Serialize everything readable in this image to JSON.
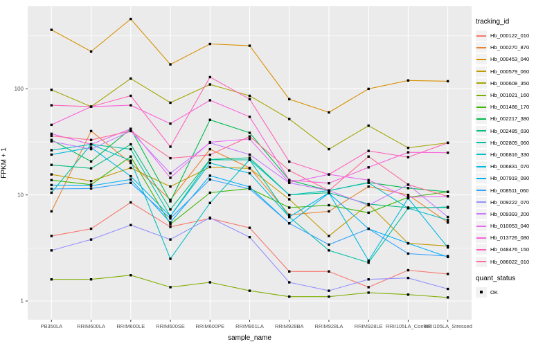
{
  "chart_data": {
    "type": "line",
    "title": "",
    "xlabel": "sample_name",
    "ylabel": "FPKM + 1",
    "y_scale": "log10",
    "y_ticks": [
      1,
      10,
      100
    ],
    "y_minor_ticks": [
      3.16,
      31.6,
      316
    ],
    "ylim": [
      0.66,
      590
    ],
    "grid": "on",
    "legend_position": "right",
    "marker": {
      "shape": "square",
      "color": "#000000",
      "meaning": "quant_status OK"
    },
    "categories": [
      "PB350LA",
      "RRIM600LA",
      "RRIM600LE",
      "RRIM600SE",
      "RRIM600PE",
      "RRIM901LA",
      "RRIM928BA",
      "RRIM928LA",
      "RRIM928LE",
      "RRII105LA_Control",
      "RRII105LA_Stressed"
    ],
    "series": [
      {
        "name": "Hb_000122_010",
        "color": "#F8766D",
        "values": [
          4.1,
          4.8,
          8.5,
          5.0,
          6.0,
          4.9,
          1.9,
          1.9,
          1.35,
          1.95,
          1.8
        ]
      },
      {
        "name": "Hb_000270_870",
        "color": "#EA8331",
        "values": [
          7.0,
          40,
          20,
          9.0,
          27,
          18,
          6.5,
          7.0,
          12,
          10,
          5.5
        ]
      },
      {
        "name": "Hb_000453_040",
        "color": "#D89000",
        "values": [
          360,
          225,
          455,
          170,
          265,
          255,
          80,
          60,
          100,
          120,
          118
        ]
      },
      {
        "name": "Hb_000579_060",
        "color": "#C09B00",
        "values": [
          15.6,
          13.5,
          18,
          12,
          18.3,
          17.8,
          9.1,
          4.1,
          8.2,
          3.5,
          3.3
        ]
      },
      {
        "name": "Hb_000608_350",
        "color": "#A3A500",
        "values": [
          98,
          68,
          125,
          74,
          110,
          86,
          52,
          27,
          45,
          27.8,
          31
        ]
      },
      {
        "name": "Hb_001021_160",
        "color": "#7CAE00",
        "values": [
          1.6,
          1.6,
          1.75,
          1.35,
          1.5,
          1.25,
          1.1,
          1.1,
          1.2,
          1.15,
          1.08
        ]
      },
      {
        "name": "Hb_001486_170",
        "color": "#39B600",
        "values": [
          13.8,
          12.5,
          23,
          5.3,
          10.5,
          11.5,
          7.6,
          8.0,
          6.8,
          9.5,
          10.7
        ]
      },
      {
        "name": "Hb_002217_380",
        "color": "#00BB4E",
        "values": [
          33,
          20.7,
          42,
          8.7,
          51,
          38.5,
          13.8,
          11,
          13.1,
          11.6,
          10.7
        ]
      },
      {
        "name": "Hb_002485_030",
        "color": "#00BF7D",
        "values": [
          19.2,
          17.8,
          30,
          7.3,
          21.6,
          22.4,
          10,
          10.5,
          8.2,
          7.6,
          7.6
        ]
      },
      {
        "name": "Hb_002805_060",
        "color": "#00C1A3",
        "values": [
          10.5,
          30,
          27,
          6.3,
          21.4,
          21.4,
          6.2,
          3.0,
          2.3,
          7.5,
          7.7
        ]
      },
      {
        "name": "Hb_006816_330",
        "color": "#00BFC4",
        "values": [
          26.4,
          30,
          21,
          2.5,
          8.4,
          21.5,
          10,
          11,
          13,
          7.5,
          5.8
        ]
      },
      {
        "name": "Hb_006831_070",
        "color": "#00BAE0",
        "values": [
          24,
          28,
          15,
          6.3,
          20,
          16,
          6.2,
          10.5,
          2.4,
          9.3,
          3.2
        ]
      },
      {
        "name": "Hb_007919_080",
        "color": "#00B0F6",
        "values": [
          12.4,
          12.2,
          14,
          5.5,
          15.2,
          11.9,
          5.4,
          10.4,
          4.8,
          3.5,
          2.6
        ]
      },
      {
        "name": "Hb_008511_060",
        "color": "#35A2FF",
        "values": [
          11.4,
          11.5,
          13,
          6.0,
          14,
          11.4,
          5.4,
          3.4,
          4.8,
          2.8,
          2.65
        ]
      },
      {
        "name": "Hb_009222_070",
        "color": "#9590FF",
        "values": [
          3.0,
          3.8,
          5.2,
          3.8,
          6.1,
          4.0,
          1.5,
          1.25,
          1.6,
          1.65,
          1.3
        ]
      },
      {
        "name": "Hb_009393_200",
        "color": "#C77CFF",
        "values": [
          32,
          27,
          40,
          16,
          31,
          24,
          13,
          11,
          8,
          12.5,
          6.2
        ]
      },
      {
        "name": "Hb_010053_040",
        "color": "#E76BF3",
        "values": [
          37.7,
          30,
          42,
          14.5,
          31.4,
          33.7,
          13.1,
          15.6,
          13.8,
          9.5,
          9.7
        ]
      },
      {
        "name": "Hb_013726_080",
        "color": "#FA62DB",
        "values": [
          45.8,
          68,
          70,
          47,
          78,
          54.5,
          13.8,
          12.9,
          18.2,
          25.2,
          25
        ]
      },
      {
        "name": "Hb_048476_150",
        "color": "#FF62BC",
        "values": [
          70,
          68,
          86,
          28.5,
          129,
          80,
          20.6,
          15.6,
          26,
          22.7,
          31
        ]
      },
      {
        "name": "Hb_086022_010",
        "color": "#FF6A98",
        "values": [
          36,
          33,
          40,
          22.2,
          23.9,
          35.6,
          17,
          11,
          23,
          12.5,
          9.7
        ]
      }
    ]
  },
  "legend": {
    "tracking_title": "tracking_id",
    "quant_title": "quant_status",
    "quant_items": [
      {
        "label": "OK"
      }
    ]
  },
  "colors": {
    "panel_bg": "#EBEBEB",
    "grid": "#FFFFFF",
    "key_bg": "#F2F2F2",
    "axis_text": "#4D4D4D",
    "tick": "#333333"
  }
}
